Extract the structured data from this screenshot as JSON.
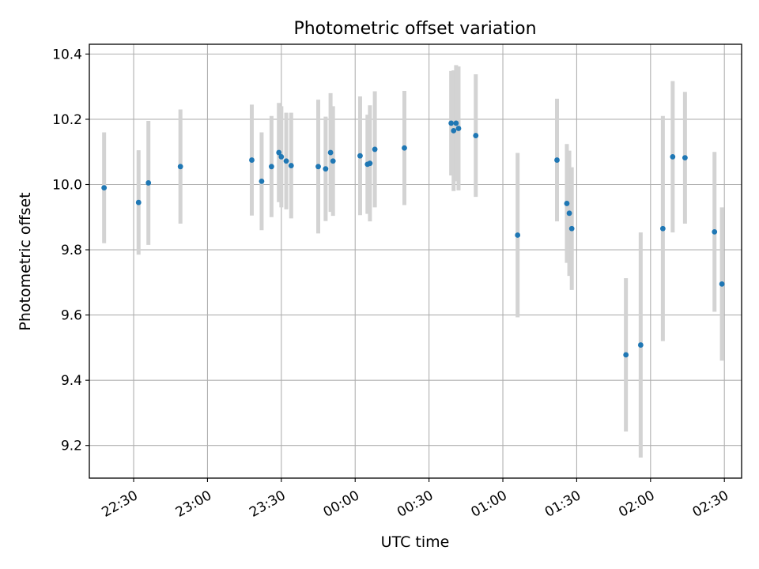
{
  "chart_data": {
    "type": "scatter",
    "title": "Photometric offset variation",
    "xlabel": "UTC time",
    "ylabel": "Photometric offset",
    "xlim": [
      "22:12",
      "02:37"
    ],
    "ylim": [
      9.1,
      10.43
    ],
    "x_ticks": [
      "22:30",
      "23:00",
      "23:30",
      "00:00",
      "00:30",
      "01:00",
      "01:30",
      "02:00",
      "02:30"
    ],
    "y_ticks": [
      9.2,
      9.4,
      9.6,
      9.8,
      10.0,
      10.2,
      10.4
    ],
    "y_tick_labels": [
      "9.2",
      "9.4",
      "9.6",
      "9.8",
      "10.0",
      "10.2",
      "10.4"
    ],
    "grid": true,
    "point_color": "#1f77b4",
    "errorbar_color": "#d3d3d3",
    "points": [
      {
        "x": "22:18",
        "y": 9.99,
        "err": 0.17
      },
      {
        "x": "22:32",
        "y": 9.945,
        "err": 0.16
      },
      {
        "x": "22:36",
        "y": 10.005,
        "err": 0.19
      },
      {
        "x": "22:49",
        "y": 10.055,
        "err": 0.175
      },
      {
        "x": "23:18",
        "y": 10.075,
        "err": 0.17
      },
      {
        "x": "23:22",
        "y": 10.01,
        "err": 0.15
      },
      {
        "x": "23:26",
        "y": 10.055,
        "err": 0.155
      },
      {
        "x": "23:29",
        "y": 10.098,
        "err": 0.152
      },
      {
        "x": "23:30",
        "y": 10.085,
        "err": 0.155
      },
      {
        "x": "23:32",
        "y": 10.072,
        "err": 0.148
      },
      {
        "x": "23:34",
        "y": 10.058,
        "err": 0.162
      },
      {
        "x": "23:45",
        "y": 10.055,
        "err": 0.205
      },
      {
        "x": "23:48",
        "y": 10.048,
        "err": 0.16
      },
      {
        "x": "23:50",
        "y": 10.098,
        "err": 0.182
      },
      {
        "x": "23:51",
        "y": 10.072,
        "err": 0.168
      },
      {
        "x": "00:02",
        "y": 10.088,
        "err": 0.182
      },
      {
        "x": "00:05",
        "y": 10.062,
        "err": 0.152
      },
      {
        "x": "00:06",
        "y": 10.065,
        "err": 0.178
      },
      {
        "x": "00:08",
        "y": 10.108,
        "err": 0.178
      },
      {
        "x": "00:20",
        "y": 10.112,
        "err": 0.175
      },
      {
        "x": "00:39",
        "y": 10.188,
        "err": 0.16
      },
      {
        "x": "00:40",
        "y": 10.165,
        "err": 0.185
      },
      {
        "x": "00:41",
        "y": 10.188,
        "err": 0.178
      },
      {
        "x": "00:42",
        "y": 10.172,
        "err": 0.19
      },
      {
        "x": "00:49",
        "y": 10.15,
        "err": 0.188
      },
      {
        "x": "01:06",
        "y": 9.845,
        "err": 0.252
      },
      {
        "x": "01:22",
        "y": 10.075,
        "err": 0.188
      },
      {
        "x": "01:26",
        "y": 9.942,
        "err": 0.182
      },
      {
        "x": "01:27",
        "y": 9.912,
        "err": 0.192
      },
      {
        "x": "01:28",
        "y": 9.865,
        "err": 0.188
      },
      {
        "x": "01:50",
        "y": 9.478,
        "err": 0.235
      },
      {
        "x": "01:56",
        "y": 9.508,
        "err": 0.345
      },
      {
        "x": "02:05",
        "y": 9.865,
        "err": 0.345
      },
      {
        "x": "02:09",
        "y": 10.085,
        "err": 0.232
      },
      {
        "x": "02:14",
        "y": 10.082,
        "err": 0.202
      },
      {
        "x": "02:26",
        "y": 9.855,
        "err": 0.245
      },
      {
        "x": "02:29",
        "y": 9.695,
        "err": 0.235
      }
    ]
  }
}
